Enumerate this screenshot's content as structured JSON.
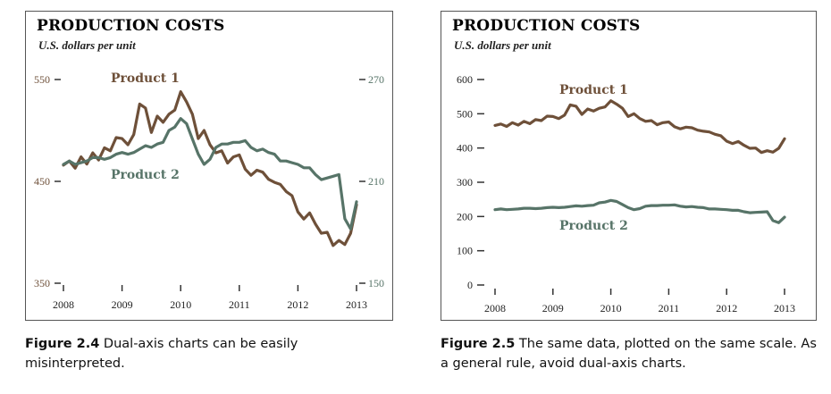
{
  "colors": {
    "product1": "#6e5039",
    "product2": "#577468",
    "axis": "#333333"
  },
  "charts": [
    {
      "title": "PRODUCTION COSTS",
      "subtitle": "U.S. dollars per unit",
      "caption_label": "Figure 2.4",
      "caption_text": "Dual-axis charts can be easily misinterpreted."
    },
    {
      "title": "PRODUCTION COSTS",
      "subtitle": "U.S. dollars per unit",
      "caption_label": "Figure 2.5",
      "caption_text": "The same data, plotted on the same scale. As a general rule, avoid dual-axis charts."
    }
  ],
  "chart_data": [
    {
      "type": "line",
      "dual_axis": true,
      "title": "PRODUCTION COSTS",
      "subtitle": "U.S. dollars per unit",
      "xlim": [
        2008,
        2013
      ],
      "x_ticks": [
        "2008",
        "2009",
        "2010",
        "2011",
        "2012",
        "2013"
      ],
      "y_left": {
        "ylim": [
          350,
          550
        ],
        "ticks": [
          "350",
          "450",
          "550"
        ],
        "series": "Product 1"
      },
      "y_right": {
        "ylim": [
          150,
          270
        ],
        "ticks": [
          "150",
          "210",
          "270"
        ],
        "series": "Product 2"
      },
      "grid": false,
      "series": [
        {
          "name": "Product 1",
          "axis": "left",
          "x": [
            2008.0,
            2008.1,
            2008.2,
            2008.3,
            2008.4,
            2008.5,
            2008.6,
            2008.7,
            2008.8,
            2008.9,
            2009.0,
            2009.1,
            2009.2,
            2009.3,
            2009.4,
            2009.5,
            2009.6,
            2009.7,
            2009.8,
            2009.9,
            2010.0,
            2010.1,
            2010.2,
            2010.3,
            2010.4,
            2010.5,
            2010.6,
            2010.7,
            2010.8,
            2010.9,
            2011.0,
            2011.1,
            2011.2,
            2011.3,
            2011.4,
            2011.5,
            2011.6,
            2011.7,
            2011.8,
            2011.9,
            2012.0,
            2012.1,
            2012.2,
            2012.3,
            2012.4,
            2012.5,
            2012.6,
            2012.7,
            2012.8,
            2012.9,
            2013.0
          ],
          "values": [
            466,
            470,
            463,
            474,
            467,
            478,
            471,
            483,
            480,
            493,
            492,
            486,
            496,
            526,
            522,
            498,
            514,
            508,
            516,
            520,
            538,
            528,
            516,
            492,
            500,
            486,
            478,
            480,
            468,
            474,
            476,
            462,
            456,
            461,
            459,
            452,
            449,
            447,
            440,
            436,
            420,
            413,
            419,
            408,
            399,
            400,
            387,
            392,
            388,
            399,
            427
          ]
        },
        {
          "name": "Product 2",
          "axis": "right",
          "x": [
            2008.0,
            2008.1,
            2008.2,
            2008.3,
            2008.4,
            2008.5,
            2008.6,
            2008.7,
            2008.8,
            2008.9,
            2009.0,
            2009.1,
            2009.2,
            2009.3,
            2009.4,
            2009.5,
            2009.6,
            2009.7,
            2009.8,
            2009.9,
            2010.0,
            2010.1,
            2010.2,
            2010.3,
            2010.4,
            2010.5,
            2010.6,
            2010.7,
            2010.8,
            2010.9,
            2011.0,
            2011.1,
            2011.2,
            2011.3,
            2011.4,
            2011.5,
            2011.6,
            2011.7,
            2011.8,
            2011.9,
            2012.0,
            2012.1,
            2012.2,
            2012.3,
            2012.4,
            2012.5,
            2012.6,
            2012.7,
            2012.8,
            2012.9,
            2013.0
          ],
          "values": [
            220,
            222,
            220,
            221,
            222,
            224,
            224,
            223,
            224,
            226,
            227,
            226,
            227,
            229,
            231,
            230,
            232,
            233,
            240,
            242,
            247,
            244,
            235,
            226,
            220,
            223,
            230,
            232,
            232,
            233,
            233,
            234,
            230,
            228,
            229,
            227,
            226,
            222,
            222,
            221,
            220,
            218,
            218,
            214,
            211,
            212,
            213,
            214,
            188,
            182,
            198
          ]
        }
      ]
    },
    {
      "type": "line",
      "title": "PRODUCTION COSTS",
      "subtitle": "U.S. dollars per unit",
      "xlim": [
        2008,
        2013
      ],
      "x_ticks": [
        "2008",
        "2009",
        "2010",
        "2011",
        "2012",
        "2013"
      ],
      "ylim": [
        0,
        600
      ],
      "y_ticks": [
        "0",
        "100",
        "200",
        "300",
        "400",
        "500",
        "600"
      ],
      "grid": false,
      "series": [
        {
          "name": "Product 1",
          "x": [
            2008.0,
            2008.1,
            2008.2,
            2008.3,
            2008.4,
            2008.5,
            2008.6,
            2008.7,
            2008.8,
            2008.9,
            2009.0,
            2009.1,
            2009.2,
            2009.3,
            2009.4,
            2009.5,
            2009.6,
            2009.7,
            2009.8,
            2009.9,
            2010.0,
            2010.1,
            2010.2,
            2010.3,
            2010.4,
            2010.5,
            2010.6,
            2010.7,
            2010.8,
            2010.9,
            2011.0,
            2011.1,
            2011.2,
            2011.3,
            2011.4,
            2011.5,
            2011.6,
            2011.7,
            2011.8,
            2011.9,
            2012.0,
            2012.1,
            2012.2,
            2012.3,
            2012.4,
            2012.5,
            2012.6,
            2012.7,
            2012.8,
            2012.9,
            2013.0
          ],
          "values": [
            466,
            470,
            463,
            474,
            467,
            478,
            471,
            483,
            480,
            493,
            492,
            486,
            496,
            526,
            522,
            498,
            514,
            508,
            516,
            520,
            538,
            528,
            516,
            492,
            500,
            486,
            478,
            480,
            468,
            474,
            476,
            462,
            456,
            461,
            459,
            452,
            449,
            447,
            440,
            436,
            420,
            413,
            419,
            408,
            399,
            400,
            387,
            392,
            388,
            399,
            427
          ]
        },
        {
          "name": "Product 2",
          "x": [
            2008.0,
            2008.1,
            2008.2,
            2008.3,
            2008.4,
            2008.5,
            2008.6,
            2008.7,
            2008.8,
            2008.9,
            2009.0,
            2009.1,
            2009.2,
            2009.3,
            2009.4,
            2009.5,
            2009.6,
            2009.7,
            2009.8,
            2009.9,
            2010.0,
            2010.1,
            2010.2,
            2010.3,
            2010.4,
            2010.5,
            2010.6,
            2010.7,
            2010.8,
            2010.9,
            2011.0,
            2011.1,
            2011.2,
            2011.3,
            2011.4,
            2011.5,
            2011.6,
            2011.7,
            2011.8,
            2011.9,
            2012.0,
            2012.1,
            2012.2,
            2012.3,
            2012.4,
            2012.5,
            2012.6,
            2012.7,
            2012.8,
            2012.9,
            2013.0
          ],
          "values": [
            220,
            222,
            220,
            221,
            222,
            224,
            224,
            223,
            224,
            226,
            227,
            226,
            227,
            229,
            231,
            230,
            232,
            233,
            240,
            242,
            247,
            244,
            235,
            226,
            220,
            223,
            230,
            232,
            232,
            233,
            233,
            234,
            230,
            228,
            229,
            227,
            226,
            222,
            222,
            221,
            220,
            218,
            218,
            214,
            211,
            212,
            213,
            214,
            188,
            182,
            198
          ]
        }
      ]
    }
  ]
}
